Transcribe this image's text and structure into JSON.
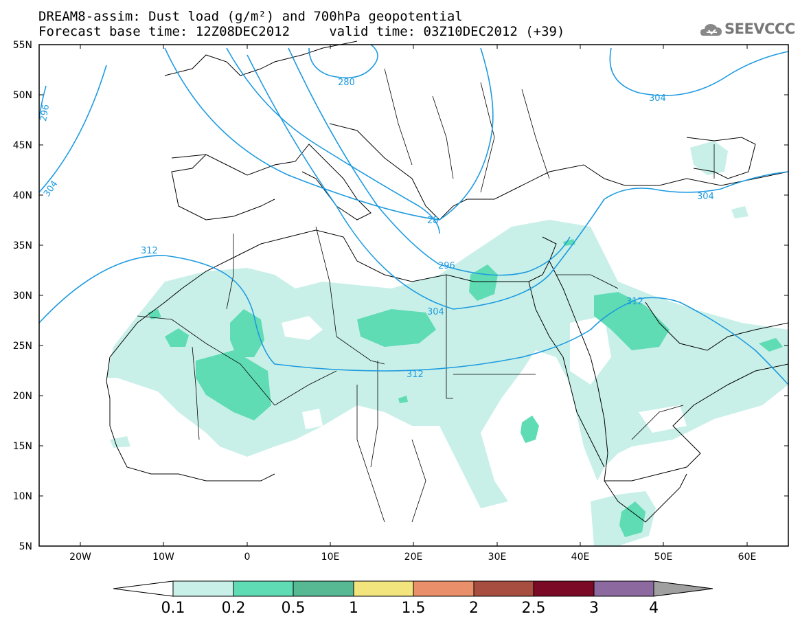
{
  "title": {
    "line1": "DREAM8-assim: Dust load (g/m²) and 700hPa geopotential",
    "line2": "Forecast base time: 12Z08DEC2012     valid time: 03Z10DEC2012 (+39)"
  },
  "logo": {
    "text": "SEEVCCC",
    "icon": "cloud-icon"
  },
  "map": {
    "lat_labels": [
      "55N",
      "50N",
      "45N",
      "40N",
      "35N",
      "30N",
      "25N",
      "20N",
      "15N",
      "10N",
      "5N"
    ],
    "lon_labels": [
      "20W",
      "10W",
      "0",
      "10E",
      "20E",
      "30E",
      "40E",
      "50E",
      "60E"
    ],
    "contour_labels": [
      "296",
      "280",
      "304",
      "304",
      "28",
      "296",
      "312",
      "304",
      "312",
      "312",
      "304"
    ],
    "contour_color": "#1e9be0"
  },
  "colorbar": {
    "labels": [
      "0.1",
      "0.2",
      "0.5",
      "1",
      "1.5",
      "2",
      "2.5",
      "3",
      "4"
    ],
    "colors": [
      "#c8f0e8",
      "#5fdcb3",
      "#56b994",
      "#f2e57d",
      "#e98f69",
      "#a84e40",
      "#7a0a25",
      "#8c6aa0",
      "#a0a0a0"
    ]
  }
}
